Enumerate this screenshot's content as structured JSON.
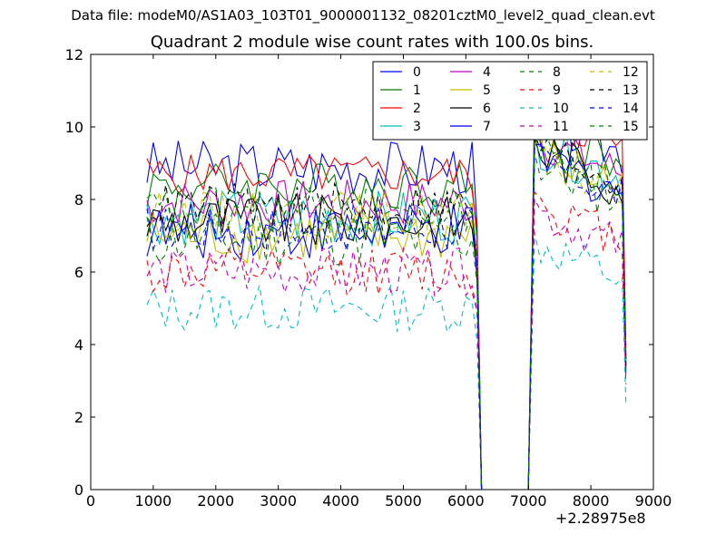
{
  "figure": {
    "suptitle": "Data file: modeM0/AS1A03_103T01_9000001132_08201cztM0_level2_quad_clean.evt",
    "x_offset_label": "+2.28975e8"
  },
  "chart_data": {
    "type": "line",
    "title": "Quadrant 2 module wise count rates with 100.0s bins.",
    "xlabel": "",
    "ylabel": "",
    "xlim": [
      0,
      9000
    ],
    "ylim": [
      0,
      12
    ],
    "xticks": [
      0,
      1000,
      2000,
      3000,
      4000,
      5000,
      6000,
      7000,
      8000,
      9000
    ],
    "yticks": [
      0,
      2,
      4,
      6,
      8,
      10,
      12
    ],
    "grid": false,
    "legend_position": "top-right",
    "legend_columns": 4,
    "series": [
      {
        "name": "0",
        "color": "#0000ff",
        "style": "solid",
        "base": 8.9,
        "amp": 0.35,
        "b2": 9.3,
        "end": 3.4
      },
      {
        "name": "1",
        "color": "#008000",
        "style": "solid",
        "base": 8.4,
        "amp": 0.3,
        "b2": 9.0,
        "end": 3.6
      },
      {
        "name": "2",
        "color": "#ff0000",
        "style": "solid",
        "base": 8.7,
        "amp": 0.25,
        "b2": 9.4,
        "end": 3.9
      },
      {
        "name": "3",
        "color": "#00bfbf",
        "style": "solid",
        "base": 7.5,
        "amp": 0.35,
        "b2": 8.6,
        "end": 3.5
      },
      {
        "name": "4",
        "color": "#bf00bf",
        "style": "solid",
        "base": 7.9,
        "amp": 0.3,
        "b2": 8.7,
        "end": 3.7
      },
      {
        "name": "5",
        "color": "#bfbf00",
        "style": "solid",
        "base": 7.0,
        "amp": 0.35,
        "b2": 8.3,
        "end": 3.3
      },
      {
        "name": "6",
        "color": "#000000",
        "style": "solid",
        "base": 7.4,
        "amp": 0.35,
        "b2": 8.4,
        "end": 3.4
      },
      {
        "name": "7",
        "color": "#0000ff",
        "style": "solid",
        "base": 7.1,
        "amp": 0.35,
        "b2": 8.2,
        "end": 3.2
      },
      {
        "name": "8",
        "color": "#008000",
        "style": "dashed",
        "base": 6.9,
        "amp": 0.35,
        "b2": 8.0,
        "end": 3.4
      },
      {
        "name": "9",
        "color": "#ff0000",
        "style": "dashed",
        "base": 6.0,
        "amp": 0.3,
        "b2": 6.9,
        "end": 2.9
      },
      {
        "name": "10",
        "color": "#00bfbf",
        "style": "dashed",
        "base": 5.0,
        "amp": 0.3,
        "b2": 5.8,
        "end": 2.4
      },
      {
        "name": "11",
        "color": "#bf00bf",
        "style": "dashed",
        "base": 6.0,
        "amp": 0.3,
        "b2": 6.7,
        "end": 3.0
      },
      {
        "name": "12",
        "color": "#bfbf00",
        "style": "dashed",
        "base": 7.6,
        "amp": 0.3,
        "b2": 8.2,
        "end": 3.5
      },
      {
        "name": "13",
        "color": "#000000",
        "style": "dashed",
        "base": 7.8,
        "amp": 0.3,
        "b2": 8.5,
        "end": 3.6
      },
      {
        "name": "14",
        "color": "#0000ff",
        "style": "dashed",
        "base": 7.2,
        "amp": 0.3,
        "b2": 8.1,
        "end": 3.3
      },
      {
        "name": "15",
        "color": "#008000",
        "style": "dashed",
        "base": 7.7,
        "amp": 0.3,
        "b2": 8.4,
        "end": 3.6
      }
    ]
  }
}
